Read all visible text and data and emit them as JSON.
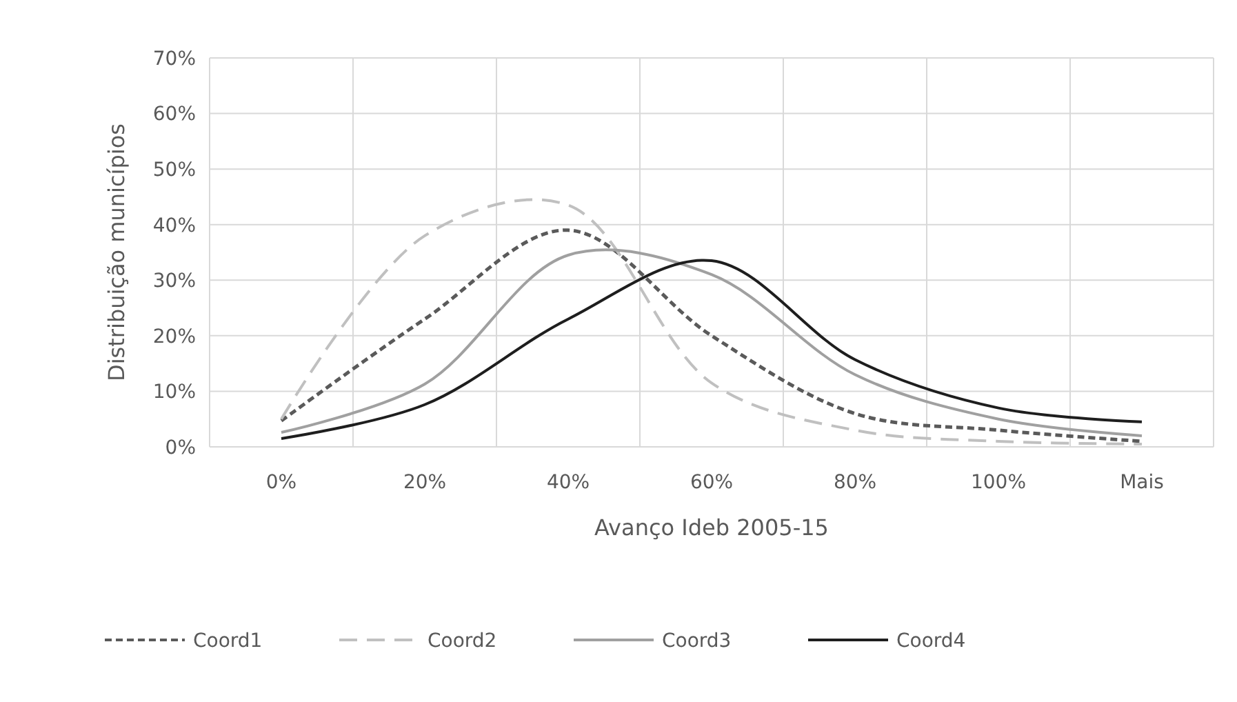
{
  "chart_data": {
    "type": "line",
    "xlabel": "Avanço Ideb 2005-15",
    "ylabel": "Distribuição municípios",
    "categories": [
      "0%",
      "20%",
      "40%",
      "60%",
      "80%",
      "100%",
      "Mais"
    ],
    "ylim": [
      0,
      70
    ],
    "yticks": [
      {
        "value": 0,
        "label": "0%"
      },
      {
        "value": 10,
        "label": "10%"
      },
      {
        "value": 20,
        "label": "20%"
      },
      {
        "value": 30,
        "label": "30%"
      },
      {
        "value": 40,
        "label": "40%"
      },
      {
        "value": 50,
        "label": "50%"
      },
      {
        "value": 60,
        "label": "60%"
      },
      {
        "value": 70,
        "label": "70%"
      }
    ],
    "grid": true,
    "legend": "bottom",
    "marker": "none",
    "series": [
      {
        "name": "Coord1",
        "color": "#5a5a5a",
        "line_style": "dashed",
        "values": [
          4.7,
          23,
          39,
          20,
          6,
          3,
          1
        ]
      },
      {
        "name": "Coord2",
        "color": "#c0c0c0",
        "line_style": "dashed",
        "values": [
          5,
          38,
          43.5,
          11.5,
          3,
          1,
          0.5
        ]
      },
      {
        "name": "Coord3",
        "color": "#a0a0a0",
        "line_style": "solid",
        "values": [
          2.6,
          11.3,
          34.5,
          31,
          13,
          5,
          2
        ]
      },
      {
        "name": "Coord4",
        "color": "#1e1e1e",
        "line_style": "solid",
        "values": [
          1.5,
          7.6,
          23,
          33.5,
          15.7,
          7,
          4.5
        ]
      }
    ]
  }
}
